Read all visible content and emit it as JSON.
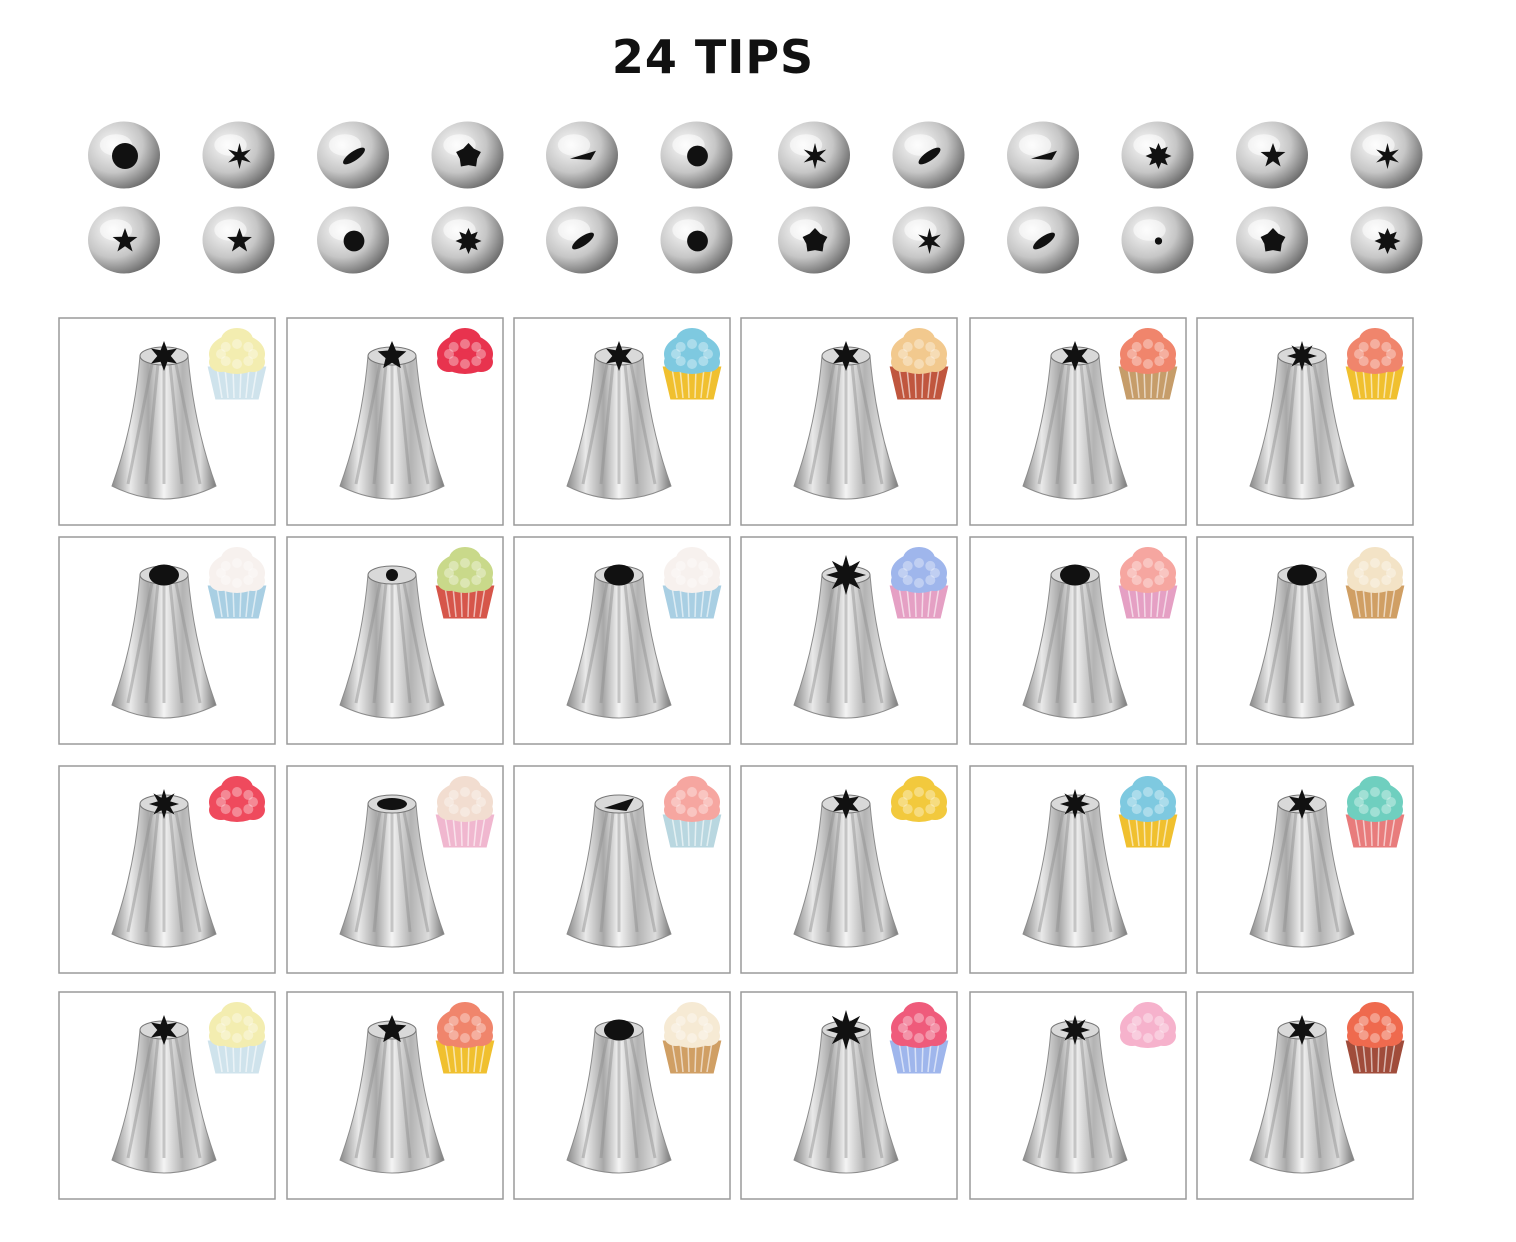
{
  "title": "24 TIPS",
  "colors": {
    "metal_light": "#f2f2f2",
    "metal_mid": "#b9b9b9",
    "metal_dark": "#6e6e6e",
    "opening": "#111111",
    "frame_border": "#9a9a9a"
  },
  "end_views": {
    "count": 24,
    "openings": [
      "round-big",
      "star-6",
      "leaf",
      "flower-5",
      "slit",
      "round",
      "star-6",
      "leaf",
      "slit",
      "star-8",
      "star-5",
      "star-6",
      "star-5",
      "star-5",
      "round",
      "star-8",
      "leaf",
      "round",
      "flower-5",
      "star-6",
      "leaf",
      "round-small",
      "flower-5",
      "star-8"
    ]
  },
  "tips": {
    "count": 24,
    "items": [
      {
        "opening": "flower",
        "swatch": "#f3edb0",
        "cup": "#cfe3ec"
      },
      {
        "opening": "star-small",
        "swatch": "#e8334e",
        "cup": null
      },
      {
        "opening": "star",
        "swatch": "#7ec9e0",
        "cup": "#f0c02f"
      },
      {
        "opening": "cross",
        "swatch": "#f2c98e",
        "cup": "#c0563e"
      },
      {
        "opening": "cross",
        "swatch": "#f0856c",
        "cup": "#c69d6a"
      },
      {
        "opening": "star-big",
        "swatch": "#f0856c",
        "cup": "#f0c02f"
      },
      {
        "opening": "round",
        "swatch": "#f7f1ee",
        "cup": "#a9cfe3"
      },
      {
        "opening": "round-small",
        "swatch": "#c9d98a",
        "cup": "#d6564a"
      },
      {
        "opening": "round",
        "swatch": "#f7f1ee",
        "cup": "#a9cfe3"
      },
      {
        "opening": "wide-star",
        "swatch": "#9fb6ec",
        "cup": "#e5a0c4"
      },
      {
        "opening": "slant",
        "swatch": "#f6a6a0",
        "cup": "#e5a0c4"
      },
      {
        "opening": "slant",
        "swatch": "#f3e3c6",
        "cup": "#d09f64"
      },
      {
        "opening": "star-big",
        "swatch": "#ef4a5d",
        "cup": null
      },
      {
        "opening": "leaf",
        "swatch": "#f2ddd0",
        "cup": "#f0b7cf"
      },
      {
        "opening": "drop",
        "swatch": "#f6a6a0",
        "cup": "#b9d7e0"
      },
      {
        "opening": "star",
        "swatch": "#f2c93d",
        "cup": null
      },
      {
        "opening": "star-big",
        "swatch": "#7ec9e0",
        "cup": "#f0c02f"
      },
      {
        "opening": "star",
        "swatch": "#6fcfbf",
        "cup": "#e87c7c"
      },
      {
        "opening": "flower",
        "swatch": "#f3edb0",
        "cup": "#cfe3ec"
      },
      {
        "opening": "star-small",
        "swatch": "#f0856c",
        "cup": "#f0c02f"
      },
      {
        "opening": "round-big",
        "swatch": "#f6ead4",
        "cup": "#d09f64"
      },
      {
        "opening": "wide-star",
        "swatch": "#ef5b7b",
        "cup": "#9fb6ec"
      },
      {
        "opening": "star-big",
        "swatch": "#f6b2cc",
        "cup": null
      },
      {
        "opening": "cross",
        "swatch": "#ef6a4e",
        "cup": "#a04c3b"
      }
    ]
  }
}
